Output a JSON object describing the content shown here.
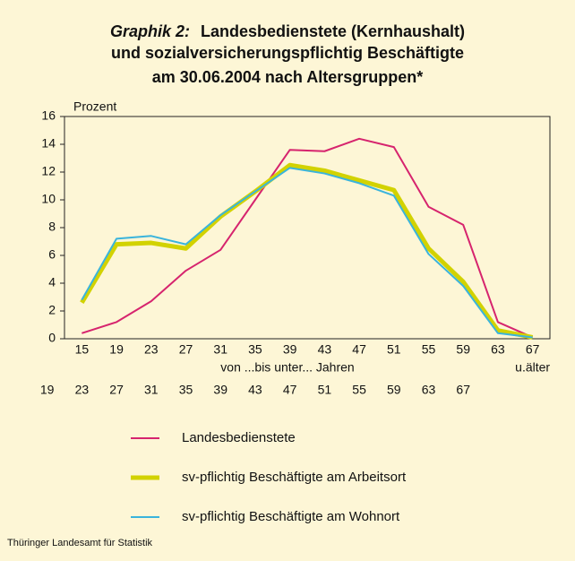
{
  "chart_data": {
    "type": "line",
    "title_prefix": "Graphik 2:",
    "title_lines": [
      "Landesbedienstete (Kernhaushalt)",
      "und sozialversicherungspflichtig Beschäftigte",
      "am 30.06.2004 nach Altersgruppen*"
    ],
    "y_label": "Prozent",
    "x_label": "von ...bis unter... Jahren",
    "categories_from": [
      "15",
      "19",
      "23",
      "27",
      "31",
      "35",
      "39",
      "43",
      "47",
      "51",
      "55",
      "59",
      "63",
      "67"
    ],
    "categories_to": [
      "19",
      "23",
      "27",
      "31",
      "35",
      "39",
      "43",
      "47",
      "51",
      "55",
      "59",
      "63",
      "67",
      "u.älter"
    ],
    "series": [
      {
        "name": "Landesbedienstete",
        "color": "#d6246e",
        "width": 2,
        "values": [
          0.4,
          1.2,
          2.7,
          4.9,
          6.4,
          10.0,
          13.6,
          13.5,
          14.4,
          13.8,
          9.5,
          8.2,
          1.2,
          0.1
        ]
      },
      {
        "name": "sv-pflichtig Beschäftigte am Arbeitsort",
        "color": "#d2d200",
        "width": 5,
        "values": [
          2.6,
          6.8,
          6.9,
          6.5,
          8.8,
          10.6,
          12.5,
          12.1,
          11.4,
          10.7,
          6.5,
          4.1,
          0.6,
          0.1
        ]
      },
      {
        "name": "sv-pflichtig Beschäftigte am Wohnort",
        "color": "#3ab4dc",
        "width": 2,
        "values": [
          2.8,
          7.2,
          7.4,
          6.8,
          8.9,
          10.6,
          12.3,
          11.9,
          11.2,
          10.3,
          6.1,
          3.8,
          0.4,
          0.1
        ]
      }
    ],
    "ylim": [
      0,
      16
    ],
    "yticks": [
      0,
      2,
      4,
      6,
      8,
      10,
      12,
      14,
      16
    ],
    "grid": false,
    "source": "Thüringer Landesamt für Statistik"
  }
}
